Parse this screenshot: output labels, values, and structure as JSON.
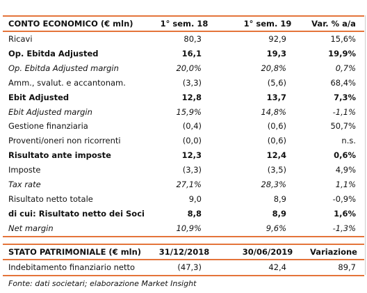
{
  "income_statement": {
    "header": [
      "CONTO ECONOMICO (€ mln)",
      "1° sem. 18",
      "1° sem. 19",
      "Var. % a/a"
    ],
    "rows": [
      [
        "Ricavi",
        "80,3",
        "92,9",
        "15,6%"
      ],
      [
        "Op. Ebitda Adjusted",
        "16,1",
        "19,3",
        "19,9%"
      ],
      [
        "Op. Ebitda Adjusted margin",
        "20,0%",
        "20,8%",
        "0,7%"
      ],
      [
        "Amm., svalut. e accantonam.",
        "(3,3)",
        "(5,6)",
        "68,4%"
      ],
      [
        "Ebit Adjusted",
        "12,8",
        "13,7",
        "7,3%"
      ],
      [
        "Ebit Adjusted margin",
        "15,9%",
        "14,8%",
        "-1,1%"
      ],
      [
        "Gestione finanziaria",
        "(0,4)",
        "(0,6)",
        "50,7%"
      ],
      [
        "Proventi/oneri non ricorrenti",
        "(0,0)",
        "(0,6)",
        "n.s."
      ],
      [
        "Risultato ante imposte",
        "12,3",
        "12,4",
        "0,6%"
      ],
      [
        "Imposte",
        "(3,3)",
        "(3,5)",
        "4,9%"
      ],
      [
        "Tax rate",
        "27,1%",
        "28,3%",
        "1,1%"
      ],
      [
        "Risultato netto totale",
        "9,0",
        "8,9",
        "-0,9%"
      ],
      [
        "di cui: Risultato netto dei Soci",
        "8,8",
        "8,9",
        "1,6%"
      ],
      [
        "Net margin",
        "10,9%",
        "9,6%",
        "-1,3%"
      ]
    ]
  },
  "balance_sheet": {
    "header": [
      "STATO PATRIMONIALE (€ mln)",
      "31/12/2018",
      "30/06/2019",
      "Variazione"
    ],
    "rows": [
      [
        "Indebitamento finanziario netto",
        "(47,3)",
        "42,4",
        "89,7"
      ]
    ]
  },
  "source": "Fonte: dati societari; elaborazione Market Insight"
}
